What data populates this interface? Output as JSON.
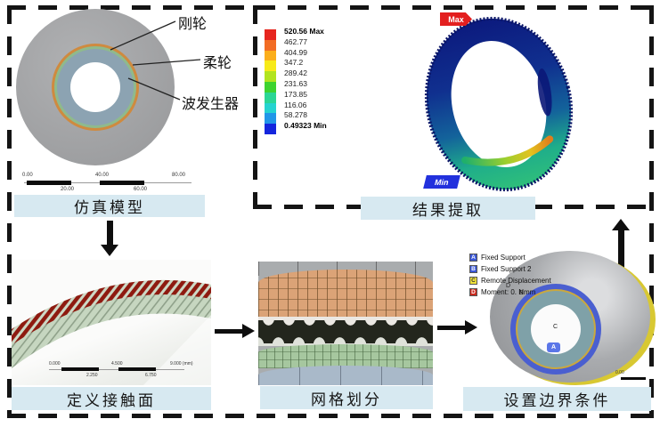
{
  "figure": {
    "sim_model": {
      "title": "仿真模型",
      "part_labels": {
        "rigid_wheel": "刚轮",
        "flex_wheel": "柔轮",
        "wave_generator": "波发生器"
      },
      "ruler": {
        "top": [
          "0.00",
          "40.00",
          "80.00"
        ],
        "bottom": [
          "20.00",
          "60.00"
        ]
      }
    },
    "result": {
      "title": "结果提取",
      "max_flag": "Max",
      "min_flag": "Min",
      "legend": {
        "values": [
          "520.56 Max",
          "462.77",
          "404.99",
          "347.2",
          "289.42",
          "231.63",
          "173.85",
          "116.06",
          "58.278",
          "0.49323 Min"
        ],
        "colors": [
          "#e6261f",
          "#f26c24",
          "#fbae1b",
          "#f7ea19",
          "#b2e41f",
          "#3ed32f",
          "#2bd695",
          "#25d3d0",
          "#2196e8",
          "#1426dd"
        ]
      }
    },
    "contact": {
      "title": "定义接触面",
      "ruler": {
        "top": [
          "0.000",
          "4.500",
          "9.000 (mm)"
        ],
        "bottom": [
          "2.250",
          "6.750"
        ]
      }
    },
    "mesh": {
      "title": "网格划分"
    },
    "boundary": {
      "title": "设置边界条件",
      "legend": [
        {
          "key": "A",
          "label": "Fixed Support",
          "color": "#3a57d8"
        },
        {
          "key": "B",
          "label": "Fixed Support 2",
          "color": "#3a57d8"
        },
        {
          "key": "C",
          "label": "Remote Displacement",
          "color": "#f0e33c"
        },
        {
          "key": "D",
          "label": "Moment: 0. Nmm",
          "color": "#cc2a1e"
        }
      ],
      "markers": {
        "a": "A",
        "b": "B",
        "c": "C",
        "d": "D"
      },
      "ruler_text": "0.00"
    },
    "colors": {
      "banner_bg": "#d7e9f1",
      "dash": "#141414",
      "rigid_wheel_gray": "#a7a8aa",
      "ring_orange": "#cf8a3f",
      "ring_green": "#8fba8c",
      "flex_bluegray": "#8ca3b2",
      "teeth_red": "#8e1a10",
      "gear_body_green": "#c6d6c0",
      "mesh_orange": "#dba377",
      "mesh_green": "#a6c79f",
      "mesh_bluegray": "#a9b9c9",
      "boundary_blue": "#4a5fd0",
      "boundary_teal": "#7fa1a8",
      "boundary_yellow_rim": "#d8c832",
      "max_flag_red": "#e31f1f",
      "min_flag_blue": "#2231dd"
    }
  }
}
